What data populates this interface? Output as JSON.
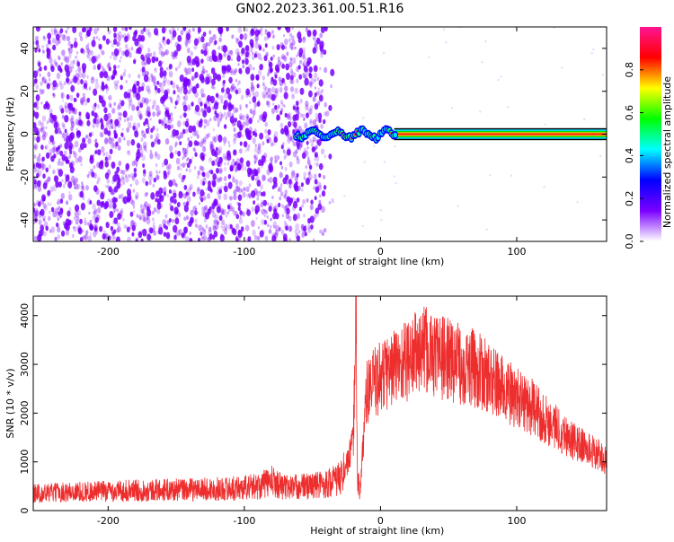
{
  "title": "GN02.2023.361.00.51.R16",
  "colors": {
    "scatter": "#7a00ff",
    "snr": "#ee2d2d",
    "axis": "#000000"
  },
  "chart_data": [
    {
      "type": "heatmap",
      "xlabel": "Height of straight line (km)",
      "ylabel": "Frequency (Hz)",
      "xlim": [
        -255,
        166
      ],
      "ylim": [
        -50,
        50
      ],
      "x_ticks": [
        -200,
        -100,
        0,
        100
      ],
      "y_ticks": [
        -40,
        -20,
        0,
        20,
        40
      ],
      "colorbar": {
        "label": "Normalized spectral amplitude",
        "range": [
          0,
          1
        ],
        "ticks": [
          "0.0",
          "0.2",
          "0.4",
          "0.6",
          "0.8"
        ],
        "colors": [
          "#ffffff",
          "#7a00ff",
          "#0000ff",
          "#00ffff",
          "#00ff00",
          "#ffff00",
          "#ff0000",
          "#ff1493"
        ]
      },
      "features": [
        {
          "description": "noise scatter",
          "x_range": [
            -255,
            -50
          ],
          "y_range": [
            -50,
            50
          ]
        },
        {
          "description": "carrier line",
          "x_range": [
            -65,
            166
          ],
          "y_value": 0,
          "peak_amplitude": 0.9
        }
      ]
    },
    {
      "type": "line",
      "xlabel": "Height of straight line (km)",
      "ylabel": "SNR (10 * v/v)",
      "xlim": [
        -255,
        166
      ],
      "ylim": [
        0,
        4400
      ],
      "x_ticks": [
        -200,
        -100,
        0,
        100
      ],
      "y_ticks": [
        0,
        1000,
        2000,
        3000,
        4000
      ],
      "series": [
        {
          "x": [
            -255,
            -230,
            -200,
            -170,
            -140,
            -110,
            -90,
            -80,
            -70,
            -55,
            -40,
            -30,
            -25,
            -20,
            -18,
            -17,
            -15,
            -12,
            -10,
            -5,
            0,
            10,
            20,
            30,
            40,
            50,
            60,
            70,
            80,
            90,
            100,
            110,
            120,
            130,
            140,
            150,
            160,
            166
          ],
          "y": [
            350,
            380,
            400,
            420,
            430,
            450,
            500,
            600,
            480,
            500,
            550,
            650,
            900,
            1400,
            4350,
            800,
            300,
            1800,
            2400,
            2600,
            2750,
            2950,
            3100,
            3300,
            3200,
            3100,
            3000,
            2900,
            2700,
            2500,
            2300,
            2150,
            1900,
            1700,
            1450,
            1300,
            1150,
            1000
          ]
        }
      ]
    }
  ]
}
